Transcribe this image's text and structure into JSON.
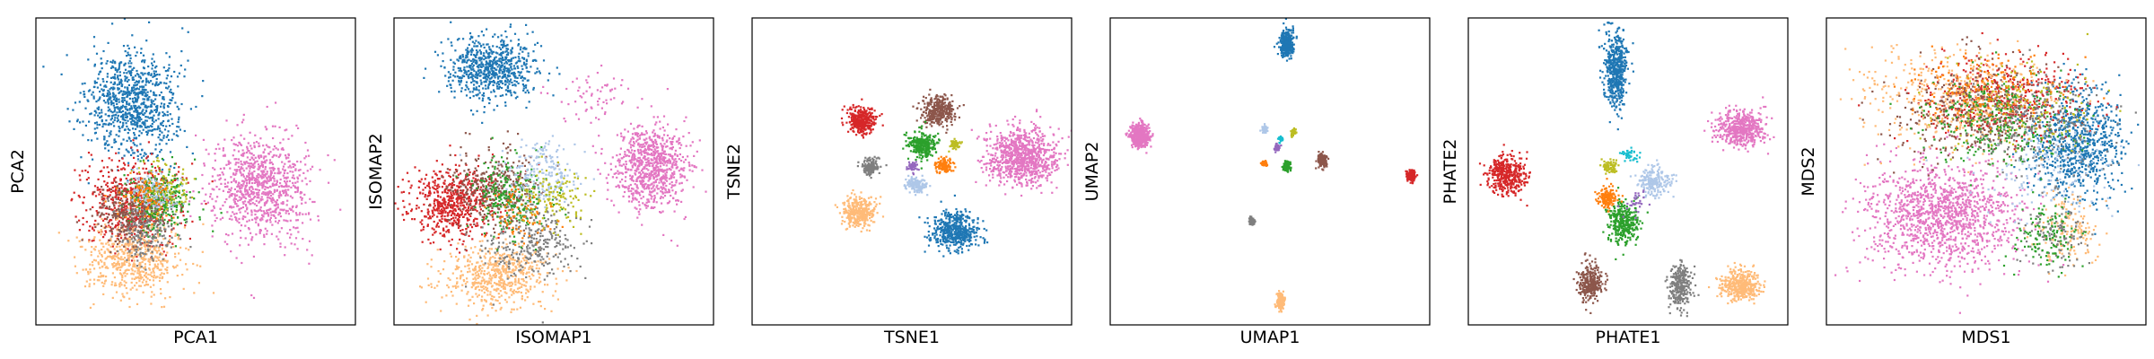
{
  "palette": {
    "c0": "#1f77b4",
    "c1": "#ff7f0e",
    "c2": "#2ca02c",
    "c3": "#d62728",
    "c4": "#8c564b",
    "c5": "#e377c2",
    "c6": "#7f7f7f",
    "c7": "#bcbd22",
    "c8": "#aec7e8",
    "c9": "#ffbb78",
    "c10": "#17becf",
    "c11": "#9467bd"
  },
  "chart_data": [
    {
      "type": "scatter",
      "xlabel": "PCA1",
      "ylabel": "PCA2",
      "grid": false,
      "xlim": [
        0,
        1
      ],
      "ylim": [
        0,
        1
      ],
      "clusters": [
        {
          "color": "c0",
          "cx": 0.3,
          "cy": 0.72,
          "sx": 0.07,
          "sy": 0.085,
          "n": 900
        },
        {
          "color": "c5",
          "cx": 0.7,
          "cy": 0.46,
          "sx": 0.075,
          "sy": 0.09,
          "n": 900
        },
        {
          "color": "c3",
          "cx": 0.3,
          "cy": 0.4,
          "sx": 0.075,
          "sy": 0.07,
          "n": 600
        },
        {
          "color": "c9",
          "cx": 0.3,
          "cy": 0.22,
          "sx": 0.075,
          "sy": 0.06,
          "n": 600
        },
        {
          "color": "c2",
          "cx": 0.38,
          "cy": 0.4,
          "sx": 0.05,
          "sy": 0.05,
          "n": 300
        },
        {
          "color": "c6",
          "cx": 0.34,
          "cy": 0.33,
          "sx": 0.05,
          "sy": 0.06,
          "n": 250
        },
        {
          "color": "c4",
          "cx": 0.28,
          "cy": 0.36,
          "sx": 0.05,
          "sy": 0.05,
          "n": 200
        },
        {
          "color": "c7",
          "cx": 0.4,
          "cy": 0.45,
          "sx": 0.04,
          "sy": 0.04,
          "n": 120
        },
        {
          "color": "c8",
          "cx": 0.36,
          "cy": 0.44,
          "sx": 0.04,
          "sy": 0.04,
          "n": 100
        },
        {
          "color": "c1",
          "cx": 0.34,
          "cy": 0.42,
          "sx": 0.04,
          "sy": 0.04,
          "n": 80
        }
      ]
    },
    {
      "type": "scatter",
      "xlabel": "ISOMAP1",
      "ylabel": "ISOMAP2",
      "grid": false,
      "xlim": [
        0,
        1
      ],
      "ylim": [
        0,
        1
      ],
      "clusters": [
        {
          "color": "c0",
          "cx": 0.3,
          "cy": 0.84,
          "sx": 0.07,
          "sy": 0.05,
          "n": 700
        },
        {
          "color": "c5",
          "cx": 0.8,
          "cy": 0.52,
          "sx": 0.06,
          "sy": 0.07,
          "n": 800
        },
        {
          "color": "c3",
          "cx": 0.18,
          "cy": 0.4,
          "sx": 0.07,
          "sy": 0.06,
          "n": 600
        },
        {
          "color": "c4",
          "cx": 0.3,
          "cy": 0.45,
          "sx": 0.07,
          "sy": 0.06,
          "n": 350
        },
        {
          "color": "c9",
          "cx": 0.32,
          "cy": 0.16,
          "sx": 0.08,
          "sy": 0.05,
          "n": 550
        },
        {
          "color": "c6",
          "cx": 0.42,
          "cy": 0.28,
          "sx": 0.07,
          "sy": 0.06,
          "n": 300
        },
        {
          "color": "c2",
          "cx": 0.36,
          "cy": 0.42,
          "sx": 0.06,
          "sy": 0.06,
          "n": 250
        },
        {
          "color": "c8",
          "cx": 0.46,
          "cy": 0.5,
          "sx": 0.06,
          "sy": 0.05,
          "n": 200
        },
        {
          "color": "c7",
          "cx": 0.5,
          "cy": 0.42,
          "sx": 0.05,
          "sy": 0.05,
          "n": 120
        },
        {
          "color": "c1",
          "cx": 0.4,
          "cy": 0.36,
          "sx": 0.05,
          "sy": 0.05,
          "n": 80
        },
        {
          "color": "c5",
          "cx": 0.62,
          "cy": 0.75,
          "sx": 0.06,
          "sy": 0.04,
          "n": 60
        }
      ]
    },
    {
      "type": "scatter",
      "xlabel": "TSNE1",
      "ylabel": "TSNE2",
      "grid": false,
      "xlim": [
        0,
        1
      ],
      "ylim": [
        0,
        1
      ],
      "clusters": [
        {
          "color": "c5",
          "cx": 0.84,
          "cy": 0.55,
          "sx": 0.055,
          "sy": 0.045,
          "n": 900
        },
        {
          "color": "c0",
          "cx": 0.63,
          "cy": 0.31,
          "sx": 0.038,
          "sy": 0.03,
          "n": 500
        },
        {
          "color": "c4",
          "cx": 0.58,
          "cy": 0.7,
          "sx": 0.025,
          "sy": 0.022,
          "n": 350
        },
        {
          "color": "c3",
          "cx": 0.34,
          "cy": 0.67,
          "sx": 0.022,
          "sy": 0.022,
          "n": 350
        },
        {
          "color": "c9",
          "cx": 0.33,
          "cy": 0.37,
          "sx": 0.025,
          "sy": 0.025,
          "n": 350
        },
        {
          "color": "c2",
          "cx": 0.53,
          "cy": 0.59,
          "sx": 0.022,
          "sy": 0.02,
          "n": 300
        },
        {
          "color": "c6",
          "cx": 0.37,
          "cy": 0.52,
          "sx": 0.015,
          "sy": 0.013,
          "n": 150
        },
        {
          "color": "c8",
          "cx": 0.51,
          "cy": 0.46,
          "sx": 0.016,
          "sy": 0.014,
          "n": 150
        },
        {
          "color": "c1",
          "cx": 0.6,
          "cy": 0.52,
          "sx": 0.013,
          "sy": 0.012,
          "n": 120
        },
        {
          "color": "c7",
          "cx": 0.63,
          "cy": 0.59,
          "sx": 0.009,
          "sy": 0.008,
          "n": 50
        },
        {
          "color": "c11",
          "cx": 0.5,
          "cy": 0.52,
          "sx": 0.008,
          "sy": 0.008,
          "n": 40
        }
      ]
    },
    {
      "type": "scatter",
      "xlabel": "UMAP1",
      "ylabel": "UMAP2",
      "grid": false,
      "xlim": [
        0,
        1
      ],
      "ylim": [
        0,
        1
      ],
      "clusters": [
        {
          "color": "c0",
          "cx": 0.55,
          "cy": 0.92,
          "sx": 0.01,
          "sy": 0.02,
          "n": 400
        },
        {
          "color": "c5",
          "cx": 0.09,
          "cy": 0.62,
          "sx": 0.014,
          "sy": 0.018,
          "n": 600
        },
        {
          "color": "c3",
          "cx": 0.94,
          "cy": 0.49,
          "sx": 0.006,
          "sy": 0.009,
          "n": 200
        },
        {
          "color": "c9",
          "cx": 0.53,
          "cy": 0.08,
          "sx": 0.006,
          "sy": 0.012,
          "n": 200
        },
        {
          "color": "c4",
          "cx": 0.66,
          "cy": 0.54,
          "sx": 0.007,
          "sy": 0.012,
          "n": 150
        },
        {
          "color": "c2",
          "cx": 0.55,
          "cy": 0.52,
          "sx": 0.006,
          "sy": 0.008,
          "n": 150
        },
        {
          "color": "c6",
          "cx": 0.44,
          "cy": 0.34,
          "sx": 0.005,
          "sy": 0.006,
          "n": 80
        },
        {
          "color": "c8",
          "cx": 0.48,
          "cy": 0.64,
          "sx": 0.005,
          "sy": 0.006,
          "n": 80
        },
        {
          "color": "c1",
          "cx": 0.48,
          "cy": 0.53,
          "sx": 0.005,
          "sy": 0.004,
          "n": 60
        },
        {
          "color": "c7",
          "cx": 0.57,
          "cy": 0.63,
          "sx": 0.004,
          "sy": 0.006,
          "n": 40
        },
        {
          "color": "c11",
          "cx": 0.52,
          "cy": 0.58,
          "sx": 0.004,
          "sy": 0.005,
          "n": 40
        },
        {
          "color": "c10",
          "cx": 0.53,
          "cy": 0.61,
          "sx": 0.004,
          "sy": 0.005,
          "n": 30
        }
      ]
    },
    {
      "type": "scatter",
      "xlabel": "PHATE1",
      "ylabel": "PHATE2",
      "grid": false,
      "xlim": [
        0,
        1
      ],
      "ylim": [
        0,
        1
      ],
      "clusters": [
        {
          "color": "c0",
          "cx": 0.46,
          "cy": 0.84,
          "sx": 0.018,
          "sy": 0.065,
          "n": 500
        },
        {
          "color": "c5",
          "cx": 0.85,
          "cy": 0.64,
          "sx": 0.04,
          "sy": 0.028,
          "n": 500
        },
        {
          "color": "c3",
          "cx": 0.12,
          "cy": 0.49,
          "sx": 0.03,
          "sy": 0.03,
          "n": 400
        },
        {
          "color": "c9",
          "cx": 0.85,
          "cy": 0.13,
          "sx": 0.03,
          "sy": 0.025,
          "n": 400
        },
        {
          "color": "c6",
          "cx": 0.66,
          "cy": 0.13,
          "sx": 0.017,
          "sy": 0.035,
          "n": 300
        },
        {
          "color": "c4",
          "cx": 0.38,
          "cy": 0.14,
          "sx": 0.02,
          "sy": 0.03,
          "n": 300
        },
        {
          "color": "c2",
          "cx": 0.48,
          "cy": 0.34,
          "sx": 0.025,
          "sy": 0.035,
          "n": 350
        },
        {
          "color": "c8",
          "cx": 0.58,
          "cy": 0.47,
          "sx": 0.025,
          "sy": 0.025,
          "n": 200
        },
        {
          "color": "c1",
          "cx": 0.43,
          "cy": 0.42,
          "sx": 0.015,
          "sy": 0.02,
          "n": 150
        },
        {
          "color": "c7",
          "cx": 0.44,
          "cy": 0.52,
          "sx": 0.012,
          "sy": 0.01,
          "n": 80
        },
        {
          "color": "c10",
          "cx": 0.5,
          "cy": 0.56,
          "sx": 0.015,
          "sy": 0.015,
          "n": 40
        },
        {
          "color": "c11",
          "cx": 0.52,
          "cy": 0.4,
          "sx": 0.02,
          "sy": 0.02,
          "n": 30
        }
      ]
    },
    {
      "type": "scatter",
      "xlabel": "MDS1",
      "ylabel": "MDS2",
      "grid": false,
      "xlim": [
        0,
        1
      ],
      "ylim": [
        0,
        1
      ],
      "clusters": [
        {
          "color": "c5",
          "cx": 0.36,
          "cy": 0.36,
          "sx": 0.12,
          "sy": 0.085,
          "n": 1300
        },
        {
          "color": "c0",
          "cx": 0.78,
          "cy": 0.6,
          "sx": 0.07,
          "sy": 0.09,
          "n": 800
        },
        {
          "color": "c3",
          "cx": 0.55,
          "cy": 0.74,
          "sx": 0.13,
          "sy": 0.07,
          "n": 500
        },
        {
          "color": "c9",
          "cx": 0.4,
          "cy": 0.74,
          "sx": 0.14,
          "sy": 0.08,
          "n": 450
        },
        {
          "color": "c4",
          "cx": 0.45,
          "cy": 0.7,
          "sx": 0.12,
          "sy": 0.08,
          "n": 350
        },
        {
          "color": "c2",
          "cx": 0.55,
          "cy": 0.66,
          "sx": 0.12,
          "sy": 0.07,
          "n": 300
        },
        {
          "color": "c6",
          "cx": 0.65,
          "cy": 0.66,
          "sx": 0.12,
          "sy": 0.08,
          "n": 250
        },
        {
          "color": "c7",
          "cx": 0.6,
          "cy": 0.72,
          "sx": 0.12,
          "sy": 0.08,
          "n": 150
        },
        {
          "color": "c1",
          "cx": 0.5,
          "cy": 0.78,
          "sx": 0.12,
          "sy": 0.06,
          "n": 150
        },
        {
          "color": "c8",
          "cx": 0.7,
          "cy": 0.5,
          "sx": 0.1,
          "sy": 0.08,
          "n": 150
        },
        {
          "color": "c9",
          "cx": 0.75,
          "cy": 0.32,
          "sx": 0.05,
          "sy": 0.06,
          "n": 150
        },
        {
          "color": "c6",
          "cx": 0.72,
          "cy": 0.3,
          "sx": 0.05,
          "sy": 0.06,
          "n": 120
        },
        {
          "color": "c2",
          "cx": 0.68,
          "cy": 0.28,
          "sx": 0.05,
          "sy": 0.06,
          "n": 120
        }
      ]
    }
  ]
}
